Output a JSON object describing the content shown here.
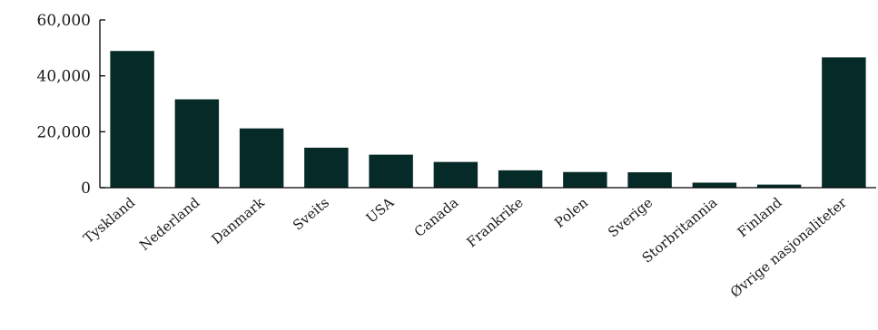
{
  "chart_data": {
    "type": "bar",
    "title": "",
    "xlabel": "",
    "ylabel": "",
    "categories": [
      "Tyskland",
      "Nederland",
      "Danmark",
      "Sveits",
      "USA",
      "Canada",
      "Frankrike",
      "Polen",
      "Sverige",
      "Storbritannia",
      "Finland",
      "Øvrige nasjonaliteter"
    ],
    "values": [
      48900,
      31600,
      21200,
      14300,
      11800,
      9200,
      6200,
      5600,
      5500,
      1800,
      1100,
      46600
    ],
    "ylim": [
      0,
      60000
    ],
    "yticks": [
      0,
      20000,
      40000,
      60000
    ],
    "ytick_labels": [
      "0",
      "20,000",
      "40,000",
      "60,000"
    ],
    "bar_color": "#062a27",
    "grid": false,
    "legend": "none"
  }
}
